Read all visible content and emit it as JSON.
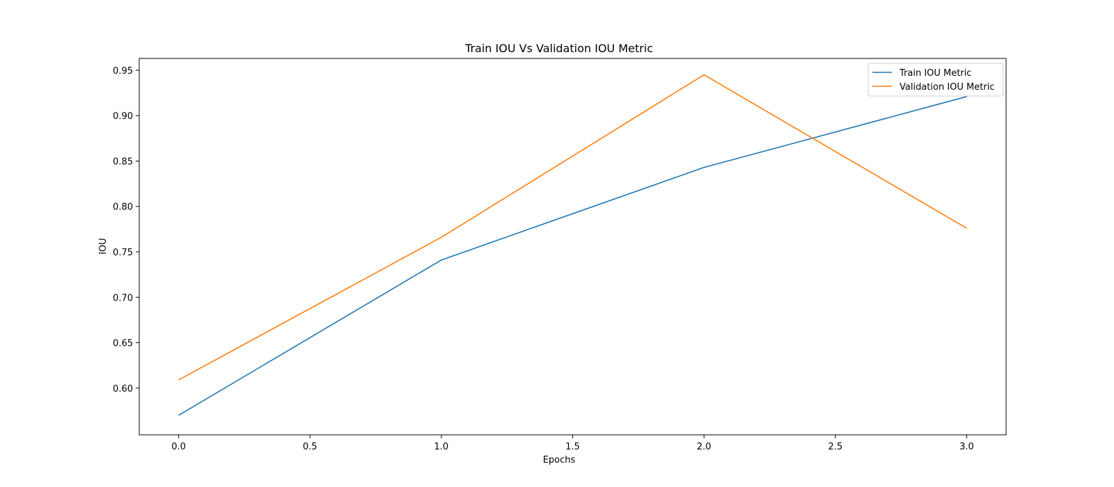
{
  "chart_data": {
    "type": "line",
    "title": "Train IOU Vs Validation IOU Metric",
    "xlabel": "Epochs",
    "ylabel": "IOU",
    "x": [
      0,
      1,
      2,
      3
    ],
    "xlim": [
      -0.15,
      3.15
    ],
    "ylim": [
      0.5485,
      0.963
    ],
    "xticks": [
      0.0,
      0.5,
      1.0,
      1.5,
      2.0,
      2.5,
      3.0
    ],
    "xtick_labels": [
      "0.0",
      "0.5",
      "1.0",
      "1.5",
      "2.0",
      "2.5",
      "3.0"
    ],
    "yticks": [
      0.6,
      0.65,
      0.7,
      0.75,
      0.8,
      0.85,
      0.9,
      0.95
    ],
    "ytick_labels": [
      "0.60",
      "0.65",
      "0.70",
      "0.75",
      "0.80",
      "0.85",
      "0.90",
      "0.95"
    ],
    "grid": false,
    "legend_position": "top-right",
    "series": [
      {
        "name": "Train IOU Metric",
        "color": "#1f77b4",
        "values": [
          0.57,
          0.741,
          0.843,
          0.921
        ]
      },
      {
        "name": "Validation IOU Metric",
        "color": "#ff7f0e",
        "values": [
          0.609,
          0.766,
          0.945,
          0.776
        ]
      }
    ]
  }
}
